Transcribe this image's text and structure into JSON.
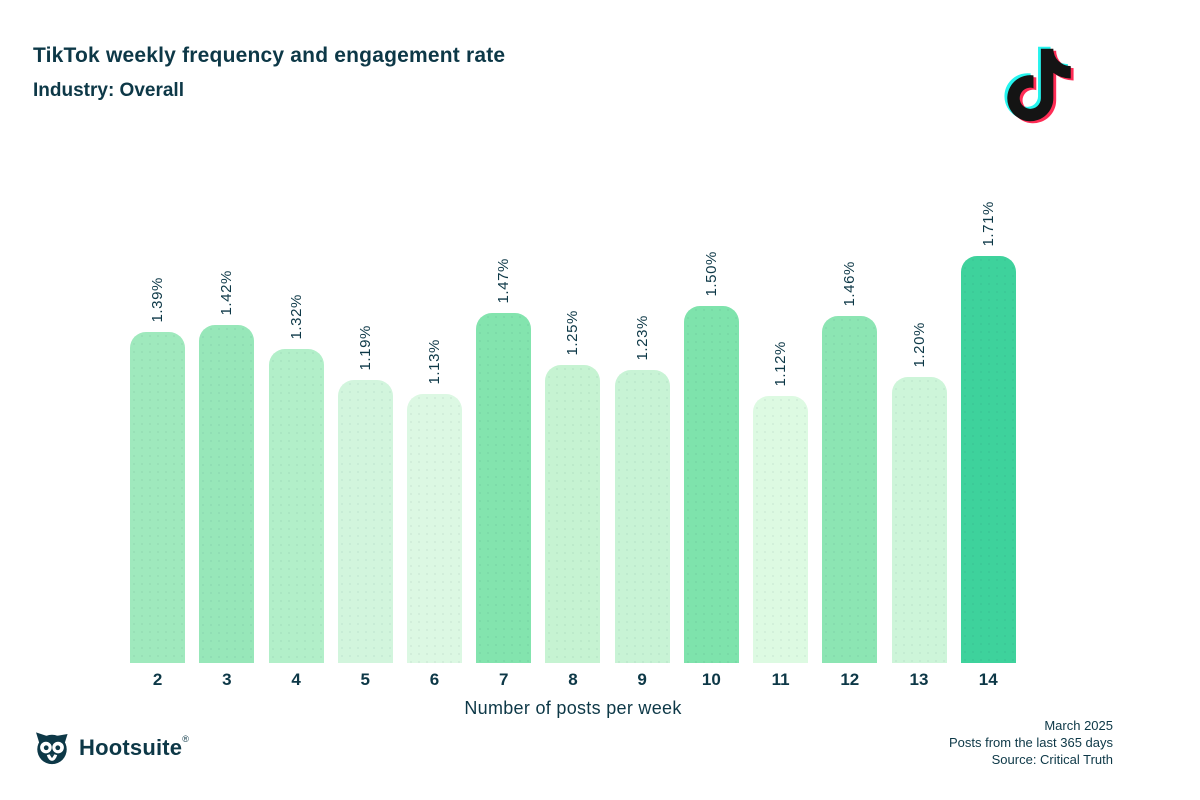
{
  "header": {
    "title": "TikTok weekly frequency and engagement rate",
    "subtitle": "Industry: Overall"
  },
  "icons": {
    "tiktok": "tiktok-note-logo",
    "hootsuite_owl": "owl-icon"
  },
  "chart_data": {
    "type": "bar",
    "categories": [
      "2",
      "3",
      "4",
      "5",
      "6",
      "7",
      "8",
      "9",
      "10",
      "11",
      "12",
      "13",
      "14"
    ],
    "values": [
      1.39,
      1.42,
      1.32,
      1.19,
      1.13,
      1.47,
      1.25,
      1.23,
      1.5,
      1.12,
      1.46,
      1.2,
      1.71
    ],
    "labels": [
      "1.39%",
      "1.42%",
      "1.32%",
      "1.19%",
      "1.13%",
      "1.47%",
      "1.25%",
      "1.23%",
      "1.50%",
      "1.12%",
      "1.46%",
      "1.20%",
      "1.71%"
    ],
    "bar_colors": [
      "#9FE9BD",
      "#97E7B9",
      "#B2EFC9",
      "#D2F5DD",
      "#DCF8E3",
      "#83E4AE",
      "#C6F3D2",
      "#C8F3D5",
      "#7EE3AC",
      "#DDFAE2",
      "#8CE5B3",
      "#CDF5D9",
      "#3ED29C"
    ],
    "title": "TikTok weekly frequency and engagement rate",
    "xlabel": "Number of posts per week",
    "ylabel": "",
    "ylim": [
      0,
      1.8
    ],
    "grid": false,
    "legend": false,
    "bar_label_rotation": 90
  },
  "footer": {
    "brand": "Hootsuite",
    "registered_mark": "®",
    "notes": [
      "March 2025",
      "Posts from the last 365 days",
      "Source: Critical Truth"
    ]
  },
  "colors": {
    "text": "#0d3847",
    "background": "#ffffff",
    "tiktok_cyan": "#25f4ee",
    "tiktok_pink": "#fe2c55",
    "tiktok_black": "#141414",
    "bar_min": "#DDFAE2",
    "bar_max": "#3ED29C"
  }
}
